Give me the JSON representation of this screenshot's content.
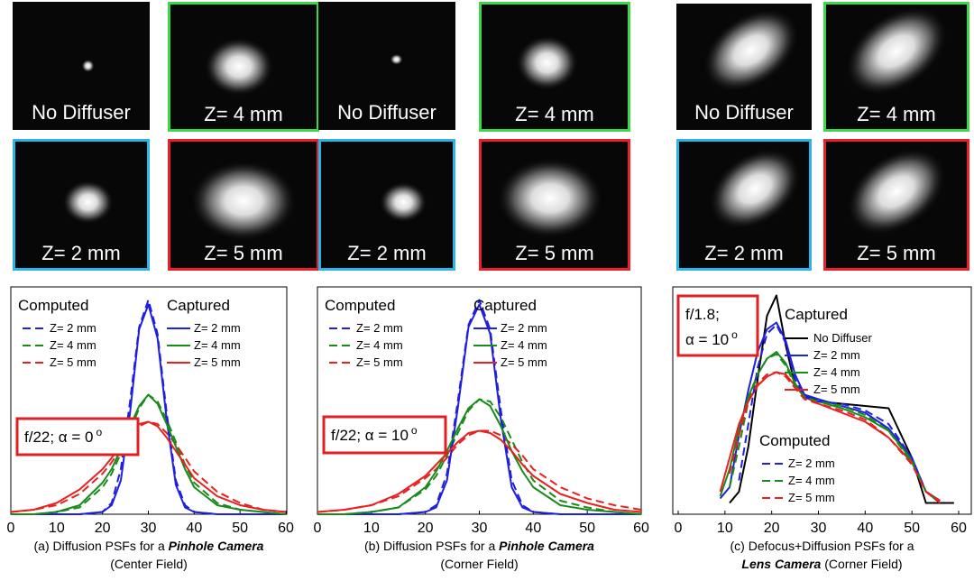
{
  "image_panels": [
    {
      "tiles": [
        {
          "label": "No Diffuser"
        },
        {
          "label": "Z= 4 mm",
          "border": "#3ed64a"
        },
        {
          "label": "Z= 2 mm",
          "border": "#29b5e8"
        },
        {
          "label": "Z= 5 mm",
          "border": "#e8202a"
        }
      ]
    },
    {
      "tiles": [
        {
          "label": "No Diffuser"
        },
        {
          "label": "Z= 4 mm",
          "border": "#3ed64a"
        },
        {
          "label": "Z= 2 mm",
          "border": "#29b5e8"
        },
        {
          "label": "Z= 5 mm",
          "border": "#e8202a"
        }
      ]
    },
    {
      "tiles": [
        {
          "label": "No Diffuser"
        },
        {
          "label": "Z= 4 mm",
          "border": "#3ed64a"
        },
        {
          "label": "Z= 2 mm",
          "border": "#29b5e8"
        },
        {
          "label": "Z= 5 mm",
          "border": "#e8202a"
        }
      ]
    }
  ],
  "chart_data": [
    {
      "type": "line",
      "xlim": [
        0,
        60
      ],
      "ylim": [
        0,
        1
      ],
      "xticks": [
        0,
        10,
        20,
        30,
        40,
        50,
        60
      ],
      "x": [
        0,
        5,
        10,
        15,
        20,
        22,
        24,
        26,
        28,
        30,
        32,
        34,
        36,
        38,
        40,
        45,
        50,
        55,
        60
      ],
      "annotation": {
        "lines": [
          "f/22; α = 0"
        ],
        "sup": "o"
      },
      "series_groups": [
        {
          "title": "Computed",
          "dash": true,
          "series": [
            {
              "name": "Z= 2 mm",
              "color": "#1f1fe0",
              "values": [
                0,
                0,
                0,
                0,
                0.01,
                0.05,
                0.2,
                0.5,
                0.83,
                0.95,
                0.8,
                0.45,
                0.15,
                0.04,
                0.01,
                0,
                0,
                0,
                0
              ]
            },
            {
              "name": "Z= 4 mm",
              "color": "#1a8a1a",
              "values": [
                0,
                0,
                0.01,
                0.03,
                0.12,
                0.18,
                0.27,
                0.37,
                0.47,
                0.53,
                0.5,
                0.42,
                0.32,
                0.22,
                0.14,
                0.05,
                0.02,
                0.01,
                0
              ]
            },
            {
              "name": "Z= 5 mm",
              "color": "#e82020",
              "values": [
                0.01,
                0.02,
                0.04,
                0.09,
                0.18,
                0.23,
                0.29,
                0.35,
                0.39,
                0.41,
                0.4,
                0.36,
                0.31,
                0.25,
                0.19,
                0.1,
                0.05,
                0.02,
                0.01
              ]
            }
          ]
        },
        {
          "title": "Captured",
          "dash": false,
          "series": [
            {
              "name": "Z= 2 mm",
              "color": "#1f1fe0",
              "values": [
                0,
                0,
                0,
                0,
                0.01,
                0.04,
                0.15,
                0.45,
                0.82,
                0.93,
                0.78,
                0.42,
                0.13,
                0.03,
                0.01,
                0,
                0,
                0,
                0
              ]
            },
            {
              "name": "Z= 4 mm",
              "color": "#1a8a1a",
              "values": [
                0,
                0,
                0.01,
                0.04,
                0.14,
                0.2,
                0.29,
                0.39,
                0.48,
                0.53,
                0.49,
                0.4,
                0.3,
                0.2,
                0.12,
                0.04,
                0.02,
                0.01,
                0
              ]
            },
            {
              "name": "Z= 5 mm",
              "color": "#e82020",
              "values": [
                0.01,
                0.02,
                0.05,
                0.11,
                0.2,
                0.25,
                0.3,
                0.36,
                0.4,
                0.41,
                0.39,
                0.34,
                0.28,
                0.22,
                0.16,
                0.08,
                0.04,
                0.02,
                0.01
              ]
            }
          ]
        }
      ],
      "caption_lines": [
        [
          {
            "text": "(a) Diffusion PSFs for a "
          },
          {
            "text": "Pinhole Camera",
            "em": true
          }
        ],
        [
          {
            "text": "(Center Field)"
          }
        ]
      ]
    },
    {
      "type": "line",
      "xlim": [
        0,
        60
      ],
      "ylim": [
        0,
        1
      ],
      "xticks": [
        0,
        10,
        20,
        30,
        40,
        50,
        60
      ],
      "x": [
        0,
        5,
        10,
        15,
        20,
        22,
        24,
        26,
        28,
        30,
        32,
        34,
        36,
        38,
        40,
        45,
        50,
        55,
        60
      ],
      "annotation": {
        "lines": [
          "f/22; α = 10"
        ],
        "sup": "o"
      },
      "series_groups": [
        {
          "title": "Computed",
          "dash": true,
          "series": [
            {
              "name": "Z= 2 mm",
              "color": "#1f1fe0",
              "values": [
                0,
                0,
                0,
                0,
                0.01,
                0.04,
                0.18,
                0.5,
                0.84,
                0.95,
                0.82,
                0.46,
                0.15,
                0.04,
                0.01,
                0,
                0,
                0,
                0
              ]
            },
            {
              "name": "Z= 4 mm",
              "color": "#1a8a1a",
              "values": [
                0,
                0,
                0.01,
                0.03,
                0.11,
                0.17,
                0.26,
                0.36,
                0.46,
                0.51,
                0.5,
                0.43,
                0.33,
                0.23,
                0.15,
                0.06,
                0.03,
                0.01,
                0
              ]
            },
            {
              "name": "Z= 5 mm",
              "color": "#e82020",
              "values": [
                0.01,
                0.02,
                0.04,
                0.08,
                0.16,
                0.2,
                0.25,
                0.31,
                0.35,
                0.37,
                0.37,
                0.35,
                0.31,
                0.26,
                0.2,
                0.12,
                0.07,
                0.04,
                0.02
              ]
            }
          ]
        },
        {
          "title": "Captured",
          "dash": false,
          "series": [
            {
              "name": "Z= 2 mm",
              "color": "#1f1fe0",
              "values": [
                0,
                0,
                0,
                0,
                0.01,
                0.03,
                0.15,
                0.47,
                0.83,
                0.93,
                0.8,
                0.42,
                0.12,
                0.03,
                0.01,
                0,
                0,
                0,
                0
              ]
            },
            {
              "name": "Z= 4 mm",
              "color": "#1a8a1a",
              "values": [
                0,
                0,
                0.01,
                0.03,
                0.12,
                0.19,
                0.28,
                0.38,
                0.47,
                0.51,
                0.48,
                0.39,
                0.28,
                0.19,
                0.12,
                0.04,
                0.02,
                0.01,
                0
              ]
            },
            {
              "name": "Z= 5 mm",
              "color": "#e82020",
              "values": [
                0.01,
                0.02,
                0.04,
                0.09,
                0.17,
                0.22,
                0.27,
                0.32,
                0.36,
                0.37,
                0.36,
                0.33,
                0.28,
                0.22,
                0.17,
                0.09,
                0.05,
                0.02,
                0.01
              ]
            }
          ]
        }
      ],
      "caption_lines": [
        [
          {
            "text": "(b) Diffusion PSFs for a "
          },
          {
            "text": "Pinhole Camera",
            "em": true
          }
        ],
        [
          {
            "text": "(Corner Field)"
          }
        ]
      ]
    },
    {
      "type": "line",
      "xlim": [
        0,
        60
      ],
      "ylim": [
        0,
        1
      ],
      "xticks": [
        0,
        10,
        20,
        30,
        40,
        50,
        60
      ],
      "x": [
        9,
        11,
        13,
        15,
        17,
        19,
        21,
        23,
        25,
        27,
        30,
        35,
        40,
        45,
        50,
        53,
        56,
        59
      ],
      "annotation": {
        "lines": [
          "f/1.8;",
          "α = 10"
        ],
        "sup": "o"
      },
      "series_groups": [
        {
          "title": "Captured",
          "dash": false,
          "series": [
            {
              "name": "No Diffuser",
              "color": "#000000",
              "values": [
                null,
                0.05,
                0.1,
                0.3,
                0.6,
                0.88,
                0.97,
                0.75,
                0.57,
                0.53,
                0.5,
                0.49,
                0.48,
                0.47,
                0.25,
                0.05,
                0.05,
                0.05
              ]
            },
            {
              "name": "Z= 2 mm",
              "color": "#1f1fe0",
              "values": [
                0.07,
                0.12,
                0.35,
                0.55,
                0.72,
                0.82,
                0.85,
                0.77,
                0.62,
                0.53,
                0.51,
                0.48,
                0.45,
                0.38,
                0.25,
                0.1,
                0.06,
                null
              ]
            },
            {
              "name": "Z= 4 mm",
              "color": "#1a8a1a",
              "values": [
                0.08,
                0.2,
                0.38,
                0.52,
                0.62,
                0.69,
                0.72,
                0.67,
                0.58,
                0.52,
                0.5,
                0.47,
                0.43,
                0.37,
                0.24,
                0.1,
                0.06,
                null
              ]
            },
            {
              "name": "Z= 5 mm",
              "color": "#e82020",
              "values": [
                0.1,
                0.25,
                0.4,
                0.5,
                0.57,
                0.61,
                0.63,
                0.62,
                0.57,
                0.52,
                0.49,
                0.45,
                0.41,
                0.34,
                0.23,
                0.1,
                0.06,
                null
              ]
            }
          ]
        },
        {
          "title": "Computed",
          "dash": true,
          "series": [
            {
              "name": "Z= 2 mm",
              "color": "#1f1fe0",
              "values": [
                null,
                null,
                0.15,
                0.4,
                0.65,
                0.8,
                0.84,
                0.76,
                0.6,
                0.52,
                0.5,
                0.49,
                0.46,
                0.4,
                0.25,
                0.1,
                0.05,
                null
              ]
            },
            {
              "name": "Z= 4 mm",
              "color": "#1a8a1a",
              "values": [
                null,
                0.12,
                0.3,
                0.5,
                0.62,
                0.69,
                0.71,
                0.66,
                0.57,
                0.52,
                0.5,
                0.48,
                0.44,
                0.37,
                0.23,
                0.1,
                0.05,
                null
              ]
            },
            {
              "name": "Z= 5 mm",
              "color": "#e82020",
              "values": [
                null,
                0.18,
                0.35,
                0.5,
                0.58,
                0.62,
                0.63,
                0.61,
                0.56,
                0.51,
                0.49,
                0.46,
                0.42,
                0.34,
                0.22,
                0.1,
                0.05,
                null
              ]
            }
          ]
        }
      ],
      "caption_lines": [
        [
          {
            "text": "(c) Defocus+Diffusion PSFs for a"
          }
        ],
        [
          {
            "text": "Lens Camera",
            "em": true
          },
          {
            "text": " (Corner Field)"
          }
        ]
      ]
    }
  ]
}
